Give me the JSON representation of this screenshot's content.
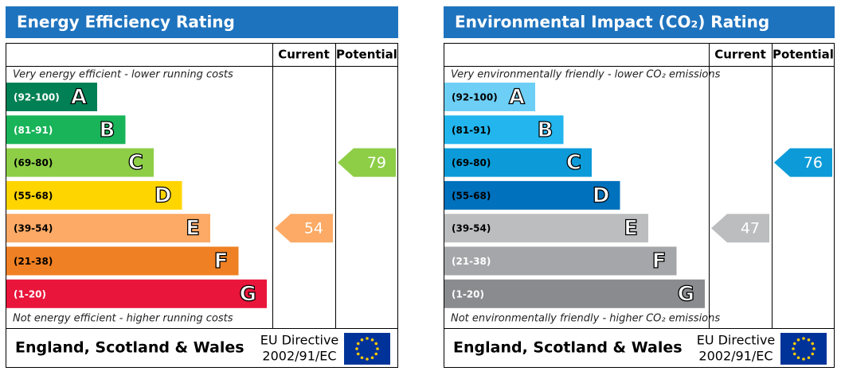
{
  "chart_data": [
    {
      "type": "epc",
      "title": "Energy Efficiency Rating",
      "columns": [
        "Current",
        "Potential"
      ],
      "top_note": "Very energy efficient - lower running costs",
      "bottom_note": "Not energy efficient - higher running costs",
      "categories": [
        "(92-100)",
        "(81-91)",
        "(69-80)",
        "(55-68)",
        "(39-54)",
        "(21-38)",
        "(1-20)"
      ],
      "letters": [
        "A",
        "B",
        "C",
        "D",
        "E",
        "F",
        "G"
      ],
      "colors": [
        "#008054",
        "#19b459",
        "#8dce46",
        "#ffd500",
        "#fcaa65",
        "#ef8023",
        "#e9153b"
      ],
      "label_colors": [
        "#fff",
        "#fff",
        "#000",
        "#000",
        "#000",
        "#000",
        "#fff"
      ],
      "current": 54,
      "potential": 79,
      "region": "England, Scotland & Wales",
      "directive": [
        "EU Directive",
        "2002/91/EC"
      ]
    },
    {
      "type": "epc",
      "title": "Environmental Impact (CO₂) Rating",
      "columns": [
        "Current",
        "Potential"
      ],
      "top_note": "Very environmentally friendly - lower CO₂ emissions",
      "bottom_note": "Not environmentally friendly - higher CO₂ emissions",
      "categories": [
        "(92-100)",
        "(81-91)",
        "(69-80)",
        "(55-68)",
        "(39-54)",
        "(21-38)",
        "(1-20)"
      ],
      "letters": [
        "A",
        "B",
        "C",
        "D",
        "E",
        "F",
        "G"
      ],
      "colors": [
        "#6dcff6",
        "#22b5ee",
        "#0c9bd8",
        "#0071bc",
        "#bbbdbf",
        "#a4a6a9",
        "#898b8e"
      ],
      "label_colors": [
        "#000",
        "#000",
        "#000",
        "#000",
        "#000",
        "#fff",
        "#fff"
      ],
      "current": 47,
      "potential": 76,
      "region": "England, Scotland & Wales",
      "directive": [
        "EU Directive",
        "2002/91/EC"
      ]
    }
  ]
}
